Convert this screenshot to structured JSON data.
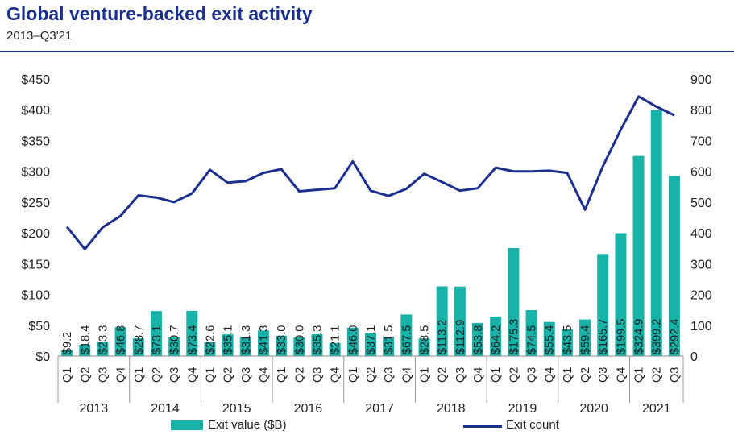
{
  "chart_data": {
    "type": "bar-line",
    "title": "Global venture-backed exit activity",
    "subtitle": "2013–Q3'21",
    "categories": [
      "Q1",
      "Q2",
      "Q3",
      "Q4",
      "Q1",
      "Q2",
      "Q3",
      "Q4",
      "Q1",
      "Q2",
      "Q3",
      "Q4",
      "Q1",
      "Q2",
      "Q3",
      "Q4",
      "Q1",
      "Q2",
      "Q3",
      "Q4",
      "Q1",
      "Q2",
      "Q3",
      "Q4",
      "Q1",
      "Q2",
      "Q3",
      "Q4",
      "Q1",
      "Q2",
      "Q3",
      "Q4",
      "Q1",
      "Q2",
      "Q3"
    ],
    "years": [
      "2013",
      "2014",
      "2015",
      "2016",
      "2017",
      "2018",
      "2019",
      "2020",
      "2021"
    ],
    "series": [
      {
        "name": "Exit value ($B)",
        "type": "bar",
        "axis": "left",
        "color": "#17b3a9",
        "values": [
          9.2,
          18.4,
          23.3,
          46.8,
          28.7,
          73.1,
          30.7,
          73.4,
          22.6,
          35.1,
          31.3,
          41.3,
          33.0,
          30.0,
          35.3,
          21.1,
          46.0,
          37.1,
          31.5,
          67.5,
          28.5,
          113.2,
          112.9,
          53.8,
          64.2,
          175.3,
          74.5,
          55.4,
          43.5,
          59.4,
          165.7,
          199.5,
          324.9,
          399.2,
          292.4
        ],
        "labels": [
          "$9.2",
          "$18.4",
          "$23.3",
          "$46.8",
          "$28.7",
          "$73.1",
          "$30.7",
          "$73.4",
          "$22.6",
          "$35.1",
          "$31.3",
          "$41.3",
          "$33.0",
          "$30.0",
          "$35.3",
          "$21.1",
          "$46.0",
          "$37.1",
          "$31.5",
          "$67.5",
          "$28.5",
          "$113.2",
          "$112.9",
          "$53.8",
          "$64.2",
          "$175.3",
          "$74.5",
          "$55.4",
          "$43.5",
          "$59.4",
          "$165.7",
          "$199.5",
          "$324.9",
          "$399.2",
          "$292.4"
        ]
      },
      {
        "name": "Exit count",
        "type": "line",
        "axis": "right",
        "color": "#1b2f8f",
        "values": [
          420,
          347,
          418,
          455,
          522,
          515,
          500,
          528,
          605,
          563,
          568,
          595,
          607,
          535,
          540,
          545,
          632,
          537,
          520,
          543,
          592,
          565,
          537,
          545,
          612,
          600,
          600,
          602,
          595,
          475,
          616,
          735,
          843,
          810,
          782
        ]
      }
    ],
    "y_left": {
      "ticks": [
        "$0",
        "$50",
        "$100",
        "$150",
        "$200",
        "$250",
        "$300",
        "$350",
        "$400",
        "$450"
      ],
      "range": [
        0,
        450
      ]
    },
    "y_right": {
      "ticks": [
        "0",
        "100",
        "200",
        "300",
        "400",
        "500",
        "600",
        "700",
        "800",
        "900"
      ],
      "range": [
        0,
        900
      ]
    },
    "grid": false,
    "legend_position": "bottom"
  }
}
